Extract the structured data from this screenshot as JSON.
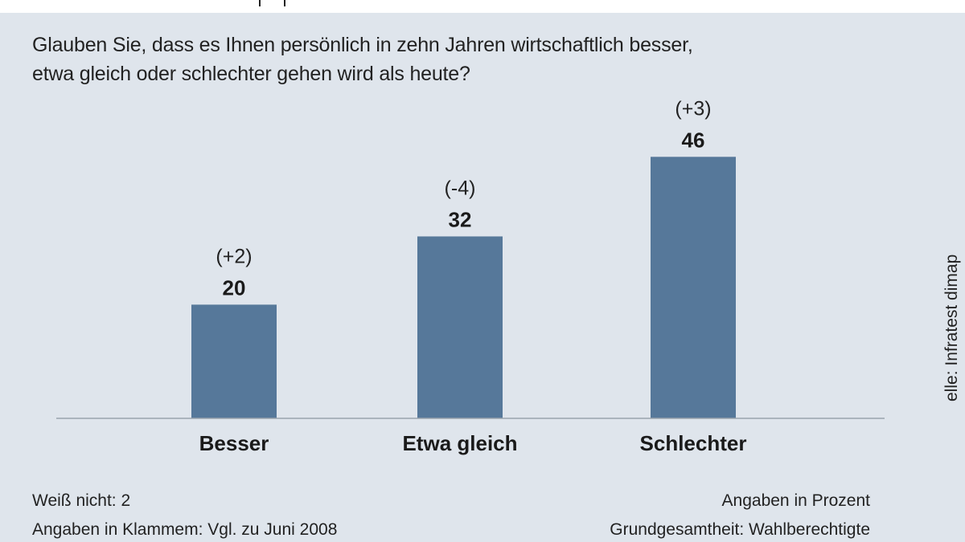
{
  "question": {
    "line1": "Glauben Sie, dass es Ihnen persönlich in zehn Jahren wirtschaftlich besser,",
    "line2": "etwa gleich oder schlechter gehen wird als heute?"
  },
  "chart_data": {
    "type": "bar",
    "categories": [
      "Besser",
      "Etwa gleich",
      "Schlechter"
    ],
    "values": [
      20,
      32,
      46
    ],
    "changes": [
      "(+2)",
      "(-4)",
      "(+3)"
    ],
    "ylim": [
      0,
      50
    ],
    "grid": false,
    "bar_color": "#56789a",
    "background": "#dfe5ec"
  },
  "footer": {
    "dont_know": "Weiß nicht: 2",
    "brackets_note": "Angaben in Klammem: Vgl. zu Juni 2008",
    "unit": "Angaben in Prozent",
    "population": "Grundgesamtheit: Wahlberechtigte",
    "source": "elle: Infratest dimap"
  }
}
